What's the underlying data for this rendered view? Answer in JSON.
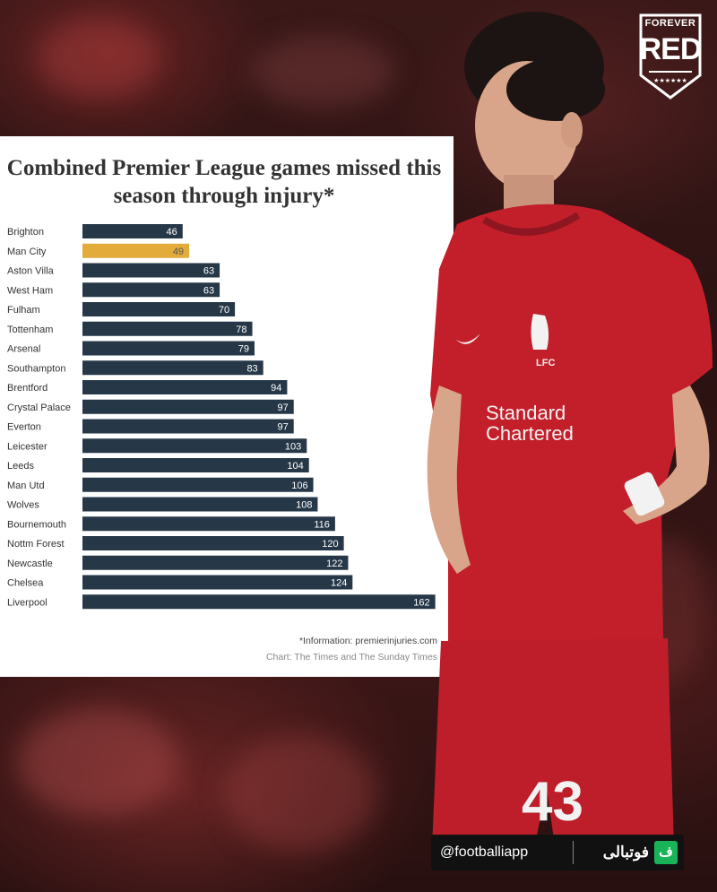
{
  "chart_data": {
    "type": "bar",
    "orientation": "horizontal",
    "title": "Combined Premier League games missed this season through injury*",
    "categories": [
      "Brighton",
      "Man City",
      "Aston Villa",
      "West Ham",
      "Fulham",
      "Tottenham",
      "Arsenal",
      "Southampton",
      "Brentford",
      "Crystal Palace",
      "Everton",
      "Leicester",
      "Leeds",
      "Man Utd",
      "Wolves",
      "Bournemouth",
      "Nottm Forest",
      "Newcastle",
      "Chelsea",
      "Liverpool"
    ],
    "values": [
      46,
      49,
      63,
      63,
      70,
      78,
      79,
      83,
      94,
      97,
      97,
      103,
      104,
      106,
      108,
      116,
      120,
      122,
      124,
      162
    ],
    "highlight": "Man City",
    "colors": {
      "bar": "#263848",
      "highlight": "#e3ac3a",
      "label_on_dark": "#ffffff",
      "label_on_highlight": "#555555"
    },
    "grid": false,
    "legend": "none"
  },
  "footnotes": {
    "source": "*Information: premierinjuries.com",
    "credit": "Chart: The Times and The Sunday Times"
  },
  "logo": {
    "line1": "FOREVER",
    "line2": "RED"
  },
  "jersey": {
    "number": "43",
    "sponsor_line1": "Standard",
    "sponsor_line2": "Chartered",
    "crest": "LFC"
  },
  "watermark": {
    "handle": "@footballiapp",
    "app_name": "فوتبالی",
    "badge": "ف"
  }
}
